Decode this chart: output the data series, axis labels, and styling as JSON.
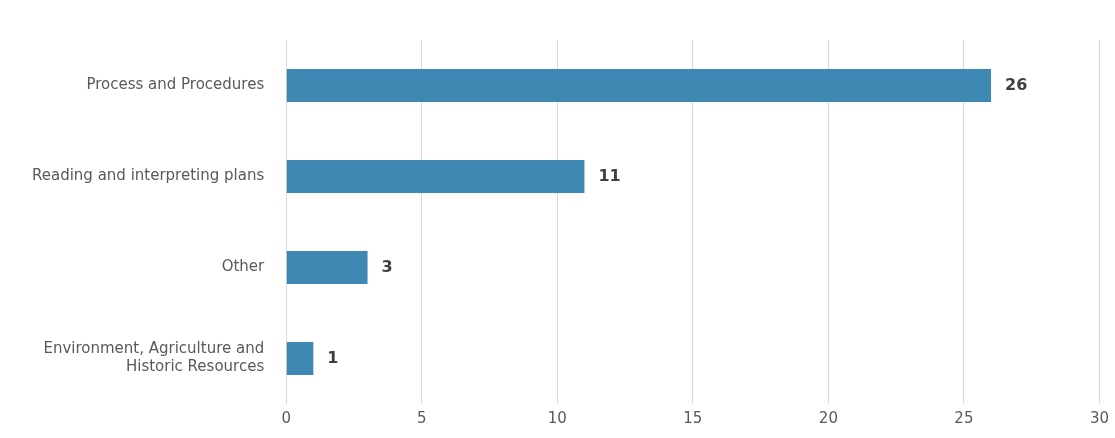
{
  "chart_data": {
    "type": "bar",
    "orientation": "horizontal",
    "categories": [
      "Process and Procedures",
      "Reading and interpreting plans",
      "Other",
      "Environment, Agriculture and Historic Resources"
    ],
    "values": [
      26,
      11,
      3,
      1
    ],
    "color": "#3f88b3",
    "xlim": [
      0,
      30
    ],
    "xticks": [
      0,
      5,
      10,
      15,
      20,
      25,
      30
    ],
    "grid": "x",
    "data_labels": true,
    "legend": false
  }
}
